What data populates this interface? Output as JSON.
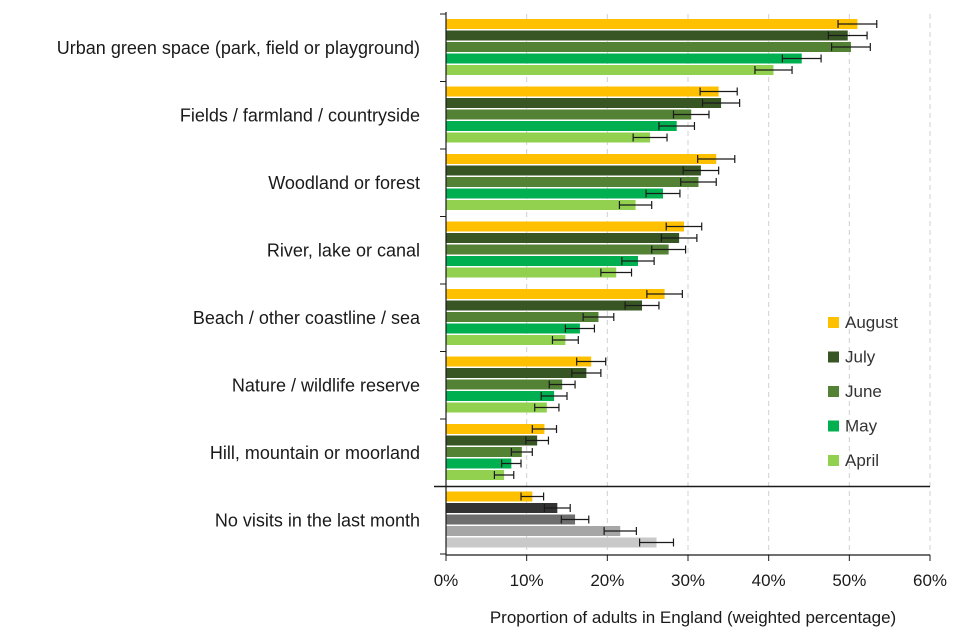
{
  "chart_data": {
    "type": "bar",
    "orientation": "horizontal",
    "title": "",
    "xlabel": "Proportion of adults in England (weighted percentage)",
    "ylabel": "",
    "xlim": [
      0,
      60
    ],
    "xticks": [
      0,
      10,
      20,
      30,
      40,
      50,
      60
    ],
    "xtick_labels": [
      "0%",
      "10%",
      "20%",
      "30%",
      "40%",
      "50%",
      "60%"
    ],
    "grid": true,
    "legend_position": "right",
    "categories": [
      "Urban green space (park, field or playground)",
      "Fields / farmland / countryside",
      "Woodland or forest",
      "River, lake or canal",
      "Beach / other coastline / sea",
      "Nature / wildlife reserve",
      "Hill, mountain or moorland",
      "No visits in the last month"
    ],
    "series": [
      {
        "name": "August",
        "color": "#FFC000",
        "alt_color": "#FFC000",
        "values": [
          51.0,
          33.8,
          33.5,
          29.5,
          27.1,
          18.0,
          12.2,
          10.7
        ],
        "err": [
          2.4,
          2.3,
          2.3,
          2.2,
          2.2,
          1.8,
          1.5,
          1.4
        ]
      },
      {
        "name": "July",
        "color": "#375623",
        "alt_color": "#333333",
        "values": [
          49.8,
          34.1,
          31.6,
          28.9,
          24.3,
          17.4,
          11.3,
          13.8
        ],
        "err": [
          2.4,
          2.3,
          2.2,
          2.2,
          2.1,
          1.8,
          1.4,
          1.6
        ]
      },
      {
        "name": "June",
        "color": "#548235",
        "alt_color": "#6E6E6E",
        "values": [
          50.2,
          30.4,
          31.3,
          27.6,
          18.9,
          14.4,
          9.4,
          16.0
        ],
        "err": [
          2.4,
          2.2,
          2.2,
          2.1,
          1.9,
          1.6,
          1.3,
          1.7
        ]
      },
      {
        "name": "May",
        "color": "#00B050",
        "alt_color": "#A6A6A6",
        "values": [
          44.1,
          28.6,
          26.9,
          23.8,
          16.6,
          13.4,
          8.1,
          21.6
        ],
        "err": [
          2.4,
          2.2,
          2.1,
          2.0,
          1.8,
          1.6,
          1.2,
          2.0
        ]
      },
      {
        "name": "April",
        "color": "#92D050",
        "alt_color": "#C9C9C9",
        "values": [
          40.6,
          25.3,
          23.5,
          21.1,
          14.8,
          12.5,
          7.2,
          26.1
        ],
        "err": [
          2.3,
          2.1,
          2.0,
          1.9,
          1.6,
          1.5,
          1.2,
          2.1
        ]
      }
    ]
  }
}
